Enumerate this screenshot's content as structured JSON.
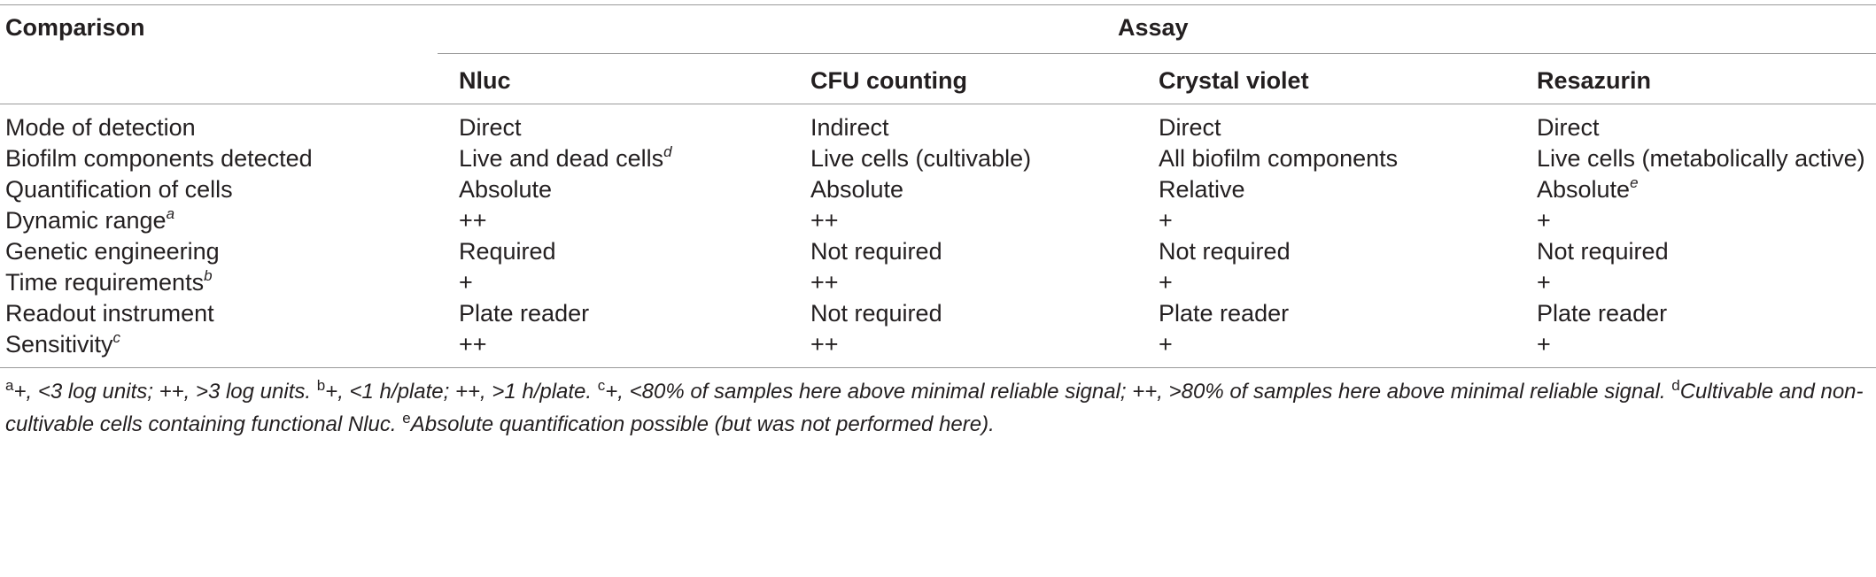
{
  "table": {
    "header": {
      "comparison": "Comparison",
      "assay": "Assay",
      "columns": [
        "Nluc",
        "CFU counting",
        "Crystal violet",
        "Resazurin"
      ]
    },
    "rows": [
      {
        "label": "Mode of detection",
        "label_sup": "",
        "cells": [
          {
            "text": "Direct",
            "sup": ""
          },
          {
            "text": "Indirect",
            "sup": ""
          },
          {
            "text": "Direct",
            "sup": ""
          },
          {
            "text": "Direct",
            "sup": ""
          }
        ]
      },
      {
        "label": "Biofilm components detected",
        "label_sup": "",
        "cells": [
          {
            "text": "Live and dead cells",
            "sup": "d"
          },
          {
            "text": "Live cells (cultivable)",
            "sup": ""
          },
          {
            "text": "All biofilm components",
            "sup": ""
          },
          {
            "text": "Live cells (metabolically active)",
            "sup": ""
          }
        ]
      },
      {
        "label": "Quantification of cells",
        "label_sup": "",
        "cells": [
          {
            "text": "Absolute",
            "sup": ""
          },
          {
            "text": "Absolute",
            "sup": ""
          },
          {
            "text": "Relative",
            "sup": ""
          },
          {
            "text": "Absolute",
            "sup": "e"
          }
        ]
      },
      {
        "label": "Dynamic range",
        "label_sup": "a",
        "cells": [
          {
            "text": "++",
            "sup": ""
          },
          {
            "text": "++",
            "sup": ""
          },
          {
            "text": "+",
            "sup": ""
          },
          {
            "text": "+",
            "sup": ""
          }
        ]
      },
      {
        "label": "Genetic engineering",
        "label_sup": "",
        "cells": [
          {
            "text": "Required",
            "sup": ""
          },
          {
            "text": "Not required",
            "sup": ""
          },
          {
            "text": "Not required",
            "sup": ""
          },
          {
            "text": "Not required",
            "sup": ""
          }
        ]
      },
      {
        "label": "Time requirements",
        "label_sup": "b",
        "cells": [
          {
            "text": "+",
            "sup": ""
          },
          {
            "text": "++",
            "sup": ""
          },
          {
            "text": "+",
            "sup": ""
          },
          {
            "text": "+",
            "sup": ""
          }
        ]
      },
      {
        "label": "Readout instrument",
        "label_sup": "",
        "cells": [
          {
            "text": "Plate reader",
            "sup": ""
          },
          {
            "text": "Not required",
            "sup": ""
          },
          {
            "text": "Plate reader",
            "sup": ""
          },
          {
            "text": "Plate reader",
            "sup": ""
          }
        ]
      },
      {
        "label": "Sensitivity",
        "label_sup": "c",
        "cells": [
          {
            "text": "++",
            "sup": ""
          },
          {
            "text": "++",
            "sup": ""
          },
          {
            "text": "+",
            "sup": ""
          },
          {
            "text": "+",
            "sup": ""
          }
        ]
      }
    ]
  },
  "footnotes": [
    {
      "mark": "a",
      "text": "+, <3 log units; ++, >3 log units. "
    },
    {
      "mark": "b",
      "text": "+, <1 h/plate; ++, >1 h/plate. "
    },
    {
      "mark": "c",
      "text": "+, <80% of samples here above minimal reliable signal; ++, >80% of samples here above minimal reliable signal. "
    },
    {
      "mark": "d",
      "text": "Cultivable and non-cultivable cells containing functional Nluc. "
    },
    {
      "mark": "e",
      "text": "Absolute quantification possible (but was not performed here)."
    }
  ]
}
